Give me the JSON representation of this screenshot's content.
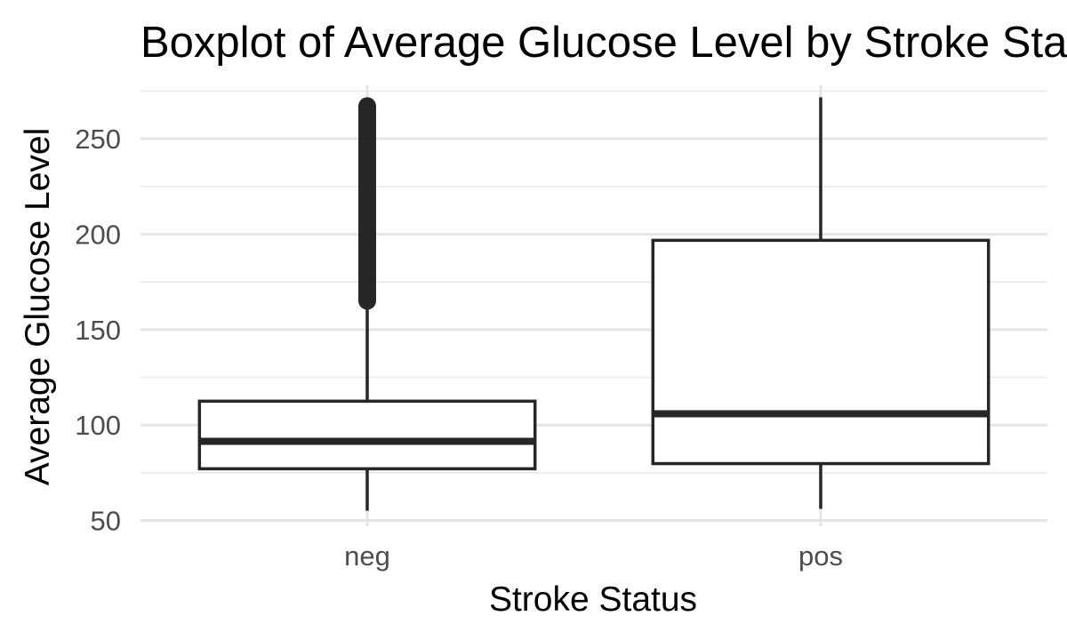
{
  "chart_data": {
    "type": "boxplot",
    "title": "Boxplot of Average Glucose Level by Stroke Status",
    "xlabel": "Stroke Status",
    "ylabel": "Average Glucose Level",
    "ylim": [
      47,
      278
    ],
    "y_ticks": [
      50,
      100,
      150,
      200,
      250
    ],
    "y_tick_labels": [
      "50",
      "100",
      "150",
      "200",
      "250"
    ],
    "grid": true,
    "categories": [
      "neg",
      "pos"
    ],
    "boxes": [
      {
        "category": "neg",
        "min": 55.1,
        "q1": 77.1,
        "median": 91.5,
        "q3": 112.5,
        "max": 165.1,
        "outliers_range": [
          165.1,
          267.8
        ]
      },
      {
        "category": "pos",
        "min": 56.1,
        "q1": 79.8,
        "median": 105.9,
        "q3": 196.8,
        "max": 271.7,
        "outliers_range": []
      }
    ],
    "colors": {
      "box_line": "#262626",
      "box_fill": "#ffffff",
      "grid": "#e5e5e5",
      "tick_text": "#4d4d4d"
    }
  }
}
